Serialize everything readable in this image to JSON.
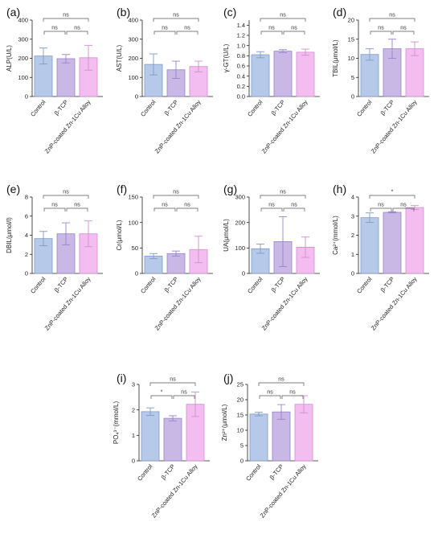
{
  "colors": {
    "control": "#b7c9e8",
    "tcp": "#c9b8e6",
    "zn": "#f3bdf0",
    "controlEdge": "#7f9ac8",
    "tcpEdge": "#9a83c8",
    "znEdge": "#d08fd0"
  },
  "categories": [
    "Control",
    "β-TCP",
    "ZnP-coated Zn-1Cu Alloy"
  ],
  "chart_data": [
    {
      "type": "bar",
      "panel": "(a)",
      "ylabel": "ALP(U/L)",
      "ylim": [
        0,
        400
      ],
      "yticks": [
        0,
        100,
        200,
        300,
        400
      ],
      "values": [
        212,
        198,
        203
      ],
      "errors": [
        42,
        22,
        65
      ],
      "comparisons": [
        {
          "from": 0,
          "to": 1,
          "label": "ns"
        },
        {
          "from": 1,
          "to": 2,
          "label": "ns"
        },
        {
          "from": 0,
          "to": 2,
          "label": "ns"
        }
      ]
    },
    {
      "type": "bar",
      "panel": "(b)",
      "ylabel": "AST(U/L)",
      "ylim": [
        0,
        400
      ],
      "yticks": [
        0,
        100,
        200,
        300,
        400
      ],
      "values": [
        168,
        140,
        157
      ],
      "errors": [
        55,
        45,
        28
      ],
      "comparisons": [
        {
          "from": 0,
          "to": 1,
          "label": "ns"
        },
        {
          "from": 1,
          "to": 2,
          "label": "ns"
        },
        {
          "from": 0,
          "to": 2,
          "label": "ns"
        }
      ]
    },
    {
      "type": "bar",
      "panel": "(c)",
      "ylabel": "γ-GT(U/L)",
      "ylim": [
        0,
        1.5
      ],
      "yticks": [
        0,
        0.2,
        0.4,
        0.6,
        0.8,
        1.0,
        1.2,
        1.4
      ],
      "ytickLabels": [
        "0.0",
        "0.2",
        "0.4",
        "0.6",
        "0.8",
        "1.0",
        "1.2",
        "1.4"
      ],
      "values": [
        0.82,
        0.89,
        0.87
      ],
      "errors": [
        0.06,
        0.03,
        0.06
      ],
      "comparisons": [
        {
          "from": 0,
          "to": 1,
          "label": "ns"
        },
        {
          "from": 1,
          "to": 2,
          "label": "ns"
        },
        {
          "from": 0,
          "to": 2,
          "label": "ns"
        }
      ]
    },
    {
      "type": "bar",
      "panel": "(d)",
      "ylabel": "TBIL(μmol/L)",
      "ylim": [
        0,
        20
      ],
      "yticks": [
        0,
        5,
        10,
        15,
        20
      ],
      "values": [
        11,
        12.5,
        12.5
      ],
      "errors": [
        1.5,
        2.5,
        1.8
      ],
      "comparisons": [
        {
          "from": 0,
          "to": 1,
          "label": "ns"
        },
        {
          "from": 1,
          "to": 2,
          "label": "ns"
        },
        {
          "from": 0,
          "to": 2,
          "label": "ns"
        }
      ]
    },
    {
      "type": "bar",
      "panel": "(e)",
      "ylabel": "DBIL(μmol/l)",
      "ylim": [
        0,
        8
      ],
      "yticks": [
        0,
        2,
        4,
        6,
        8
      ],
      "values": [
        3.65,
        4.15,
        4.15
      ],
      "errors": [
        0.75,
        1.15,
        1.35
      ],
      "comparisons": [
        {
          "from": 0,
          "to": 1,
          "label": "ns"
        },
        {
          "from": 1,
          "to": 2,
          "label": "ns"
        },
        {
          "from": 0,
          "to": 2,
          "label": "ns"
        }
      ]
    },
    {
      "type": "bar",
      "panel": "(f)",
      "ylabel": "Cr(μmol/L)",
      "ylim": [
        0,
        150
      ],
      "yticks": [
        0,
        50,
        100,
        150
      ],
      "values": [
        34,
        39,
        47
      ],
      "errors": [
        5,
        5,
        26
      ],
      "comparisons": [
        {
          "from": 0,
          "to": 1,
          "label": "ns"
        },
        {
          "from": 1,
          "to": 2,
          "label": "ns"
        },
        {
          "from": 0,
          "to": 2,
          "label": "ns"
        }
      ]
    },
    {
      "type": "bar",
      "panel": "(g)",
      "ylabel": "UA(μmol/L)",
      "ylim": [
        0,
        300
      ],
      "yticks": [
        0,
        100,
        200,
        300
      ],
      "values": [
        97,
        125,
        103
      ],
      "errors": [
        18,
        98,
        40
      ],
      "comparisons": [
        {
          "from": 0,
          "to": 1,
          "label": "ns"
        },
        {
          "from": 1,
          "to": 2,
          "label": "ns"
        },
        {
          "from": 0,
          "to": 2,
          "label": "ns"
        }
      ]
    },
    {
      "type": "bar",
      "panel": "(h)",
      "ylabel": "Ca²⁺(mmol/L)",
      "ylim": [
        0,
        4
      ],
      "yticks": [
        0,
        1,
        2,
        3,
        4
      ],
      "values": [
        2.92,
        3.2,
        3.45
      ],
      "errors": [
        0.25,
        0.03,
        0.1
      ],
      "comparisons": [
        {
          "from": 0,
          "to": 1,
          "label": "ns"
        },
        {
          "from": 1,
          "to": 2,
          "label": "ns"
        },
        {
          "from": 0,
          "to": 2,
          "label": "*"
        }
      ]
    },
    {
      "type": "bar",
      "panel": "(i)",
      "ylabel": "PO₄³⁻(mmol/L)",
      "ylim": [
        0,
        3
      ],
      "yticks": [
        0,
        1,
        2,
        3
      ],
      "values": [
        1.93,
        1.67,
        2.22
      ],
      "errors": [
        0.15,
        0.1,
        0.48
      ],
      "comparisons": [
        {
          "from": 0,
          "to": 1,
          "label": "*"
        },
        {
          "from": 1,
          "to": 2,
          "label": "ns"
        },
        {
          "from": 0,
          "to": 2,
          "label": "ns"
        }
      ]
    },
    {
      "type": "bar",
      "panel": "(j)",
      "ylabel": "Zn²⁺(μmol/L)",
      "ylim": [
        0,
        25
      ],
      "yticks": [
        0,
        5,
        10,
        15,
        20,
        25
      ],
      "values": [
        15.3,
        16.0,
        18.5
      ],
      "errors": [
        0.6,
        2.4,
        2.8
      ],
      "comparisons": [
        {
          "from": 0,
          "to": 1,
          "label": "ns"
        },
        {
          "from": 1,
          "to": 2,
          "label": "ns"
        },
        {
          "from": 0,
          "to": 2,
          "label": "ns"
        }
      ]
    }
  ]
}
